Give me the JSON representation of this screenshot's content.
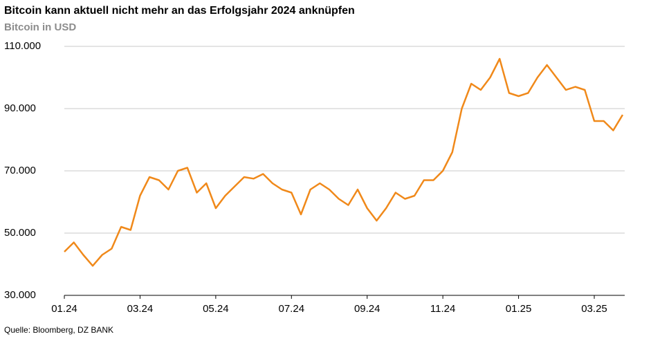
{
  "chart_data": {
    "type": "line",
    "title": "Bitcoin kann aktuell nicht mehr an das Erfolgsjahr 2024 anknüpfen",
    "subtitle": "Bitcoin in USD",
    "source": "Quelle: Bloomberg, DZ BANK",
    "categories": [
      "01.24",
      null,
      null,
      null,
      null,
      null,
      null,
      null,
      "03.24",
      null,
      null,
      null,
      null,
      null,
      null,
      null,
      "05.24",
      null,
      null,
      null,
      null,
      null,
      null,
      null,
      "07.24",
      null,
      null,
      null,
      null,
      null,
      null,
      null,
      "09.24",
      null,
      null,
      null,
      null,
      null,
      null,
      null,
      "11.24",
      null,
      null,
      null,
      null,
      null,
      null,
      null,
      "01.25",
      null,
      null,
      null,
      null,
      null,
      null,
      null,
      "03.25",
      null,
      null,
      null
    ],
    "series": [
      {
        "name": "Bitcoin",
        "color": "#f0891a",
        "values": [
          44000,
          47000,
          43000,
          39500,
          43000,
          45000,
          52000,
          51000,
          62000,
          68000,
          67000,
          64000,
          70000,
          71000,
          63000,
          66000,
          58000,
          62000,
          65000,
          68000,
          67500,
          69000,
          66000,
          64000,
          63000,
          56000,
          64000,
          66000,
          64000,
          61000,
          59000,
          64000,
          58000,
          54000,
          58000,
          63000,
          61000,
          62000,
          67000,
          67000,
          70000,
          76000,
          90000,
          98000,
          96000,
          100000,
          106000,
          95000,
          94000,
          95000,
          100000,
          104000,
          100000,
          96000,
          97000,
          96000,
          86000,
          86000,
          83000,
          88000
        ]
      }
    ],
    "ylim": [
      30000,
      110000
    ],
    "yticks": [
      {
        "value": 30000,
        "label": "30.000"
      },
      {
        "value": 50000,
        "label": "50.000"
      },
      {
        "value": 70000,
        "label": "70.000"
      },
      {
        "value": 90000,
        "label": "90.000"
      },
      {
        "value": 110000,
        "label": "110.000"
      }
    ],
    "grid": true
  }
}
